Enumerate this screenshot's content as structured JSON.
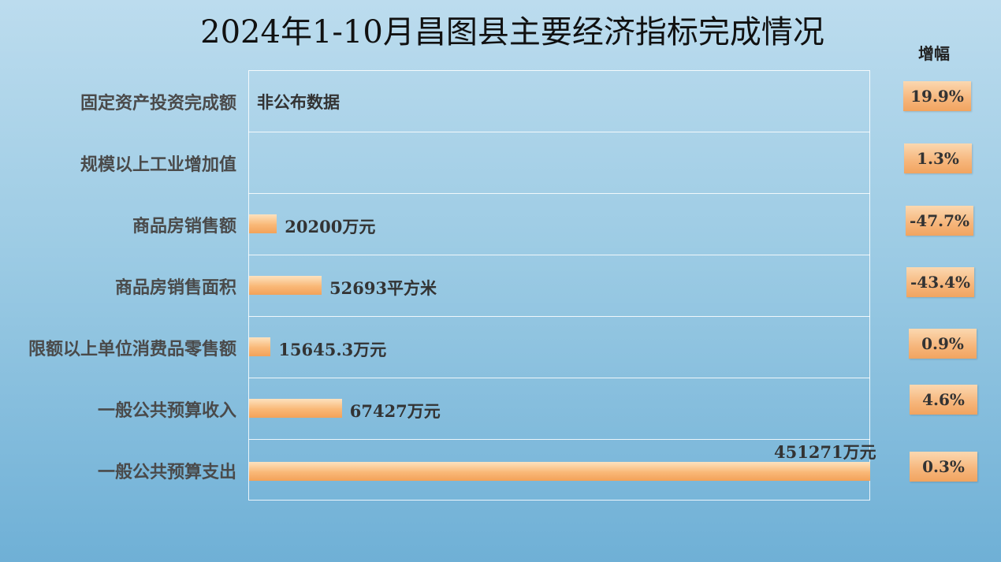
{
  "chart_data": {
    "type": "bar",
    "orientation": "horizontal",
    "title": "2024年1-10月昌图县主要经济指标完成情况",
    "growth_header": "增幅",
    "categories": [
      "固定资产投资完成额",
      "规模以上工业增加值",
      "商品房销售额",
      "商品房销售面积",
      "限额以上单位消费品零售额",
      "一般公共预算收入",
      "一般公共预算支出"
    ],
    "values": [
      null,
      null,
      20200,
      52693,
      15645.3,
      67427,
      451271
    ],
    "value_labels": [
      "非公布数据",
      "",
      "20200万元",
      "52693平方米",
      "15645.3万元",
      "67427万元",
      "451271万元"
    ],
    "growth": [
      "19.9%",
      "1.3%",
      "-47.7%",
      "-43.4%",
      "0.9%",
      "4.6%",
      "0.3%"
    ],
    "colors": {
      "bar": "#f6b06a",
      "growth_box": "#f6b57a"
    },
    "grid": true
  }
}
